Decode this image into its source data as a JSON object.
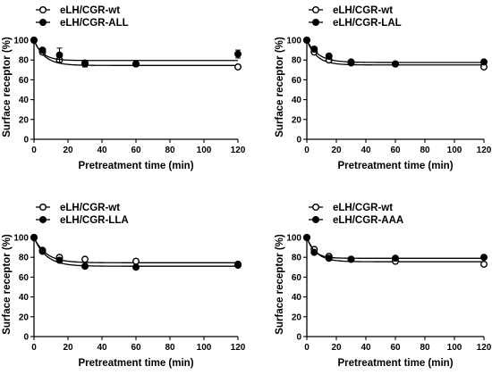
{
  "chart_data": [
    {
      "type": "scatter",
      "xlabel": "Pretreatment time (min)",
      "ylabel": "Surface receptor (%)",
      "xlim": [
        0,
        120
      ],
      "ylim": [
        0,
        100
      ],
      "xticks": [
        0,
        20,
        40,
        60,
        80,
        100,
        120
      ],
      "yticks": [
        0,
        20,
        40,
        60,
        80,
        100
      ],
      "legend": "top-left",
      "series": [
        {
          "name": "eLH/CGR-wt",
          "marker": "open-circle",
          "x": [
            0,
            5,
            15,
            30,
            60,
            120
          ],
          "y": [
            100,
            88,
            80,
            77,
            76,
            73
          ],
          "err": [
            0,
            1,
            2,
            1,
            1,
            1
          ],
          "plateau": 74.5,
          "k": 0.16
        },
        {
          "name": "eLH/CGR-ALL",
          "marker": "filled-circle",
          "x": [
            0,
            5,
            15,
            30,
            60,
            120
          ],
          "y": [
            100,
            90,
            85,
            76,
            76,
            86
          ],
          "err": [
            0,
            2,
            7,
            3,
            2,
            4
          ],
          "plateau": 79.5,
          "k": 0.2
        }
      ]
    },
    {
      "type": "scatter",
      "xlabel": "Pretreatment time (min)",
      "ylabel": "Surface receptor (%)",
      "xlim": [
        0,
        120
      ],
      "ylim": [
        0,
        100
      ],
      "xticks": [
        0,
        20,
        40,
        60,
        80,
        100,
        120
      ],
      "yticks": [
        0,
        20,
        40,
        60,
        80,
        100
      ],
      "legend": "top-left",
      "series": [
        {
          "name": "eLH/CGR-wt",
          "marker": "open-circle",
          "x": [
            0,
            5,
            15,
            30,
            60,
            120
          ],
          "y": [
            100,
            88,
            80,
            77,
            76,
            73
          ],
          "err": [
            0,
            1,
            1,
            1,
            1,
            1
          ],
          "plateau": 75,
          "k": 0.15
        },
        {
          "name": "eLH/CGR-LAL",
          "marker": "filled-circle",
          "x": [
            0,
            5,
            15,
            30,
            60,
            120
          ],
          "y": [
            100,
            91,
            84,
            78,
            76,
            78
          ],
          "err": [
            0,
            1,
            1,
            1,
            1,
            1
          ],
          "plateau": 77.5,
          "k": 0.13
        }
      ]
    },
    {
      "type": "scatter",
      "xlabel": "Pretreatment time (min)",
      "ylabel": "Surface receptor (%)",
      "xlim": [
        0,
        120
      ],
      "ylim": [
        0,
        100
      ],
      "xticks": [
        0,
        20,
        40,
        60,
        80,
        100,
        120
      ],
      "yticks": [
        0,
        20,
        40,
        60,
        80,
        100
      ],
      "legend": "top-left",
      "series": [
        {
          "name": "eLH/CGR-wt",
          "marker": "open-circle",
          "x": [
            0,
            5,
            15,
            30,
            60,
            120
          ],
          "y": [
            100,
            87,
            80,
            78,
            76,
            73
          ],
          "err": [
            0,
            1,
            1,
            1,
            1,
            1
          ],
          "plateau": 74.5,
          "k": 0.14
        },
        {
          "name": "eLH/CGR-LLA",
          "marker": "filled-circle",
          "x": [
            0,
            5,
            15,
            30,
            60,
            120
          ],
          "y": [
            100,
            86,
            77,
            71,
            70,
            72
          ],
          "err": [
            0,
            1,
            1,
            1,
            1,
            1
          ],
          "plateau": 71,
          "k": 0.14
        }
      ]
    },
    {
      "type": "scatter",
      "xlabel": "Pretreatment time (min)",
      "ylabel": "Surface receptor (%)",
      "xlim": [
        0,
        120
      ],
      "ylim": [
        0,
        100
      ],
      "xticks": [
        0,
        20,
        40,
        60,
        80,
        100,
        120
      ],
      "yticks": [
        0,
        20,
        40,
        60,
        80,
        100
      ],
      "legend": "top-left",
      "series": [
        {
          "name": "eLH/CGR-wt",
          "marker": "open-circle",
          "x": [
            0,
            5,
            15,
            30,
            60,
            120
          ],
          "y": [
            100,
            88,
            81,
            78,
            76,
            73
          ],
          "err": [
            0,
            1,
            1,
            1,
            1,
            1
          ],
          "plateau": 75.5,
          "k": 0.15
        },
        {
          "name": "eLH/CGR-AAA",
          "marker": "filled-circle",
          "x": [
            0,
            5,
            15,
            30,
            60,
            120
          ],
          "y": [
            100,
            85,
            79,
            78,
            79,
            80
          ],
          "err": [
            0,
            1,
            1,
            1,
            1,
            1
          ],
          "plateau": 79,
          "k": 0.2
        }
      ]
    }
  ]
}
